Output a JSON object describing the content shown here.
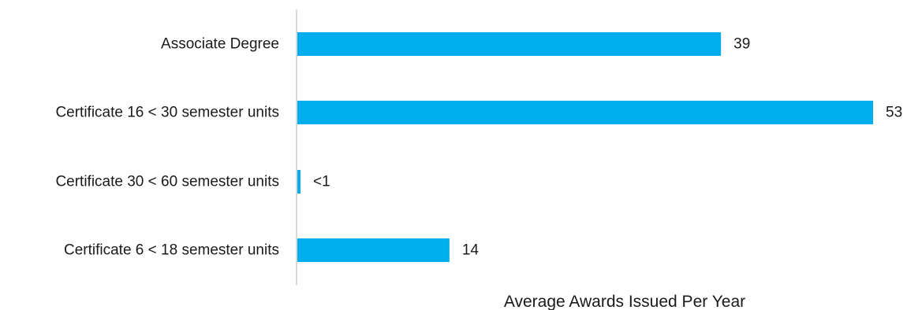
{
  "chart_data": {
    "type": "bar",
    "orientation": "horizontal",
    "categories": [
      "Associate Degree",
      "Certificate 16 < 30 semester units",
      "Certificate 30 < 60 semester units",
      "Certificate 6 < 18 semester units"
    ],
    "values": [
      39,
      53,
      0.2,
      14
    ],
    "value_labels": [
      "39",
      "53",
      "<1",
      "14"
    ],
    "title": "",
    "xlabel": "Average Awards Issued Per Year",
    "ylabel": "",
    "xlim": [
      0,
      53
    ],
    "grid": false,
    "legend": "none",
    "bar_color": "#00AEEF",
    "axis_color": "#d9d9d9"
  }
}
